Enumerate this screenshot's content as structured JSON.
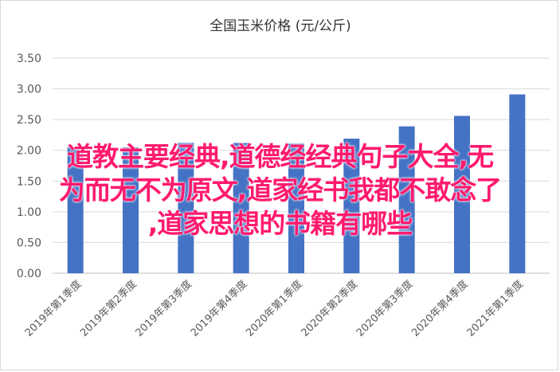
{
  "chart_data": {
    "type": "bar",
    "title": "全国玉米价格 (元/公斤)",
    "categories": [
      "2019年第1季度",
      "2019年第2季度",
      "2019年第3季度",
      "2019年第4季度",
      "2020年第1季度",
      "2020年第2季度",
      "2020年第3季度",
      "2020年第4季度",
      "2021年第1季度"
    ],
    "values": [
      2.05,
      2.05,
      2.12,
      2.12,
      2.11,
      2.19,
      2.39,
      2.56,
      2.91
    ],
    "ylim": [
      0,
      3.5
    ],
    "yticks": [
      "0.00",
      "0.50",
      "1.00",
      "1.50",
      "2.00",
      "2.50",
      "3.00",
      "3.50"
    ],
    "grid": true,
    "bar_color": "#4472c4"
  },
  "overlay_text": {
    "line1": "道教主要经典,道德经经典句子大全,无",
    "line2": "为而无不为原文,道家经书我都不敢念了",
    "line3": ",道家思想的书籍有哪些"
  }
}
